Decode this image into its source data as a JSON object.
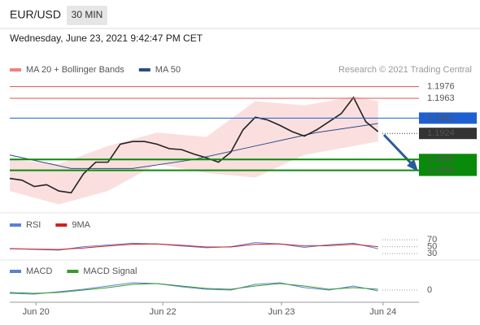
{
  "header": {
    "symbol": "EUR/USD",
    "timeframe": "30 MIN",
    "datetime": "Wednesday, June 23, 2021 9:42:47 PM CET",
    "credit": "Research © 2021 Trading Central"
  },
  "chart_data": [
    {
      "type": "line",
      "xlim": [
        0,
        100
      ],
      "ylim": [
        1.1842,
        1.1991
      ],
      "xticks": [
        {
          "value": 6.4,
          "label": "Jun 20"
        },
        {
          "value": 37.4,
          "label": "Jun 22"
        },
        {
          "value": 66.4,
          "label": "Jun 23"
        },
        {
          "value": 91.2,
          "label": "Jun 24"
        }
      ],
      "series": [
        {
          "name": "MA 20 + Bollinger Bands",
          "color": "#f08080",
          "x": [
            0,
            12,
            24,
            36,
            48,
            60,
            72,
            84,
            90
          ],
          "upper": [
            1.1895,
            1.189,
            1.191,
            1.1925,
            1.192,
            1.196,
            1.1955,
            1.1965,
            1.196
          ],
          "lower": [
            1.186,
            1.1845,
            1.186,
            1.189,
            1.188,
            1.1875,
            1.19,
            1.191,
            1.1915
          ]
        },
        {
          "name": "MA 50",
          "color": "#2b4c8c",
          "x": [
            0,
            15,
            30,
            45,
            60,
            75,
            90
          ],
          "values": [
            1.19,
            1.1885,
            1.1885,
            1.1895,
            1.191,
            1.1925,
            1.1935
          ]
        },
        {
          "color": "#222222",
          "x": [
            0,
            3,
            6,
            9,
            12,
            15,
            18,
            21,
            24,
            27,
            30,
            33,
            36,
            39,
            42,
            45,
            48,
            51,
            54,
            57,
            60,
            63,
            66,
            69,
            72,
            75,
            78,
            81,
            84,
            87,
            90
          ],
          "values": [
            1.1874,
            1.1872,
            1.1865,
            1.1867,
            1.186,
            1.1858,
            1.1879,
            1.1892,
            1.1892,
            1.1912,
            1.1915,
            1.1915,
            1.1912,
            1.1907,
            1.1906,
            1.1901,
            1.1897,
            1.1892,
            1.1903,
            1.1928,
            1.1942,
            1.1939,
            1.1933,
            1.1926,
            1.1921,
            1.1928,
            1.1937,
            1.1946,
            1.1964,
            1.1937,
            1.1926
          ]
        }
      ],
      "levels": [
        {
          "value": 1.1976,
          "color": "#e05050",
          "box": false
        },
        {
          "value": 1.1963,
          "color": "#e05050",
          "box": false
        },
        {
          "value": 1.1941,
          "color": "#1f5fd0",
          "box": true
        },
        {
          "value": 1.1924,
          "color": "#333333",
          "box": true,
          "dotted": true
        },
        {
          "value": 1.1895,
          "color": "#0a8a0a",
          "box": true
        },
        {
          "value": 1.1883,
          "color": "#0a8a0a",
          "box": true
        }
      ]
    },
    {
      "type": "line",
      "ylim": [
        16,
        94
      ],
      "yticks": [
        30,
        50,
        70
      ],
      "series": [
        {
          "name": "RSI",
          "color": "#5b7fd6",
          "x": [
            0,
            6,
            12,
            18,
            24,
            30,
            36,
            42,
            48,
            54,
            60,
            66,
            72,
            78,
            84,
            90
          ],
          "values": [
            45,
            42,
            40,
            50,
            55,
            60,
            58,
            52,
            47,
            50,
            62,
            58,
            48,
            56,
            60,
            44
          ]
        },
        {
          "name": "9MA",
          "color": "#d02020",
          "x": [
            0,
            6,
            12,
            18,
            24,
            30,
            36,
            42,
            48,
            54,
            60,
            66,
            72,
            78,
            84,
            90
          ],
          "values": [
            44,
            43,
            42,
            46,
            52,
            57,
            58,
            54,
            49,
            49,
            57,
            58,
            52,
            53,
            57,
            50
          ]
        }
      ]
    },
    {
      "type": "line",
      "ylim": [
        -0.0013,
        0.0032
      ],
      "yticks": [
        0
      ],
      "series": [
        {
          "name": "MACD",
          "color": "#5b7fd6",
          "x": [
            0,
            6,
            12,
            18,
            24,
            30,
            36,
            42,
            48,
            54,
            60,
            66,
            72,
            78,
            84,
            90
          ],
          "values": [
            -0.0004,
            -0.0005,
            -0.0002,
            0.0001,
            0.0005,
            0.0009,
            0.0008,
            0.0004,
            0.0001,
            0,
            0.0007,
            0.0009,
            0.0003,
            0,
            0.0005,
            -0.0001
          ]
        },
        {
          "name": "MACD Signal",
          "color": "#3a9a2a",
          "x": [
            0,
            6,
            12,
            18,
            24,
            30,
            36,
            42,
            48,
            54,
            60,
            66,
            72,
            78,
            84,
            90
          ],
          "values": [
            -0.0003,
            -0.0004,
            -0.0003,
            0,
            0.0003,
            0.0007,
            0.0008,
            0.0005,
            0.0002,
            0.0001,
            0.0005,
            0.0008,
            0.0005,
            0.0001,
            0.0003,
            0.0001
          ]
        }
      ]
    }
  ]
}
